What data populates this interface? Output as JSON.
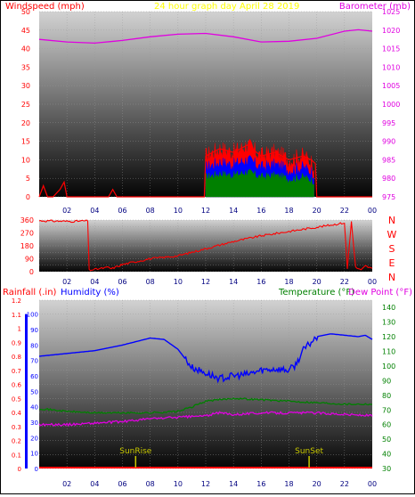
{
  "chart_data": {
    "type": "line",
    "title": "24 hour graph day   April 28 2019",
    "x_ticks": [
      "02",
      "04",
      "06",
      "08",
      "10",
      "12",
      "14",
      "16",
      "18",
      "20",
      "22",
      "00"
    ],
    "colors": {
      "windspeed": "#ff0000",
      "gust_band_blue": "#0000ff",
      "gust_band_green": "#008000",
      "barometer": "#e000e0",
      "direction": "#ff0000",
      "rainfall": "#ff0000",
      "humidity": "#0000ff",
      "temperature": "#008000",
      "dewpoint": "#e000e0",
      "title": "#ffff00",
      "sun_marker": "#c8c800"
    },
    "panels": [
      {
        "id": "wind",
        "left_label": "Windspeed (mph)",
        "right_label": "Barometer (mb)",
        "left_ticks": [
          "0",
          "5",
          "10",
          "15",
          "20",
          "25",
          "30",
          "35",
          "40",
          "45",
          "50"
        ],
        "right_ticks": [
          "975",
          "980",
          "985",
          "990",
          "995",
          "1000",
          "1005",
          "1010",
          "1015",
          "1020",
          "1025"
        ],
        "ylim_left": [
          0,
          50
        ],
        "ylim_right": [
          975,
          1025
        ],
        "series": [
          {
            "name": "Barometer",
            "axis": "right",
            "x": [
              0,
              2,
              4,
              6,
              8,
              10,
              12,
              14,
              16,
              18,
              20,
              22,
              23,
              24
            ],
            "y": [
              1017.5,
              1016.8,
              1016.5,
              1017.2,
              1018.2,
              1018.9,
              1019.1,
              1018.2,
              1016.8,
              1017.0,
              1017.8,
              1019.7,
              1020.1,
              1019.7
            ]
          },
          {
            "name": "Windspeed",
            "axis": "left",
            "x": [
              0,
              0.3,
              0.6,
              1,
              1.5,
              1.8,
              2,
              5,
              5.3,
              5.6,
              6,
              11.9,
              12,
              13,
              14,
              15,
              16,
              17,
              18,
              19,
              19.6,
              19.9,
              20,
              24
            ],
            "y": [
              0,
              3,
              0,
              0,
              2,
              4,
              0,
              0,
              2,
              0,
              0,
              0,
              11,
              13,
              12,
              14,
              11,
              12,
              10,
              11,
              10,
              9,
              0,
              0
            ]
          }
        ]
      },
      {
        "id": "direction",
        "right_labels": [
          "N",
          "W",
          "S",
          "E",
          "N"
        ],
        "left_ticks": [
          "0",
          "45",
          "90",
          "135",
          "180",
          "225",
          "270",
          "315",
          "360"
        ],
        "ylim": [
          0,
          360
        ],
        "series": [
          {
            "name": "Wind direction",
            "x": [
              0,
              2.3,
              3.5,
              3.6,
              5,
              5.2,
              6,
              8,
              10,
              12,
              14,
              16,
              18,
              20,
              22,
              22.2,
              22.5,
              22.8,
              23.2,
              23.5,
              24
            ],
            "y": [
              355,
              350,
              355,
              10,
              30,
              20,
              50,
              90,
              110,
              160,
              210,
              250,
              280,
              310,
              340,
              20,
              350,
              30,
              10,
              40,
              20
            ]
          }
        ]
      },
      {
        "id": "temp",
        "left_label_rain": "Rainfall (.in)",
        "left_label_humidity": "Humidity (%)",
        "right_label_temp": "Temperature (°F)",
        "right_label_dew": "Dew Point (°F)",
        "rain_ticks": [
          "0",
          "0.1",
          "0.2",
          "0.3",
          "0.4",
          "0.5",
          "0.6",
          "0.7",
          "0.8",
          "0.9",
          "1",
          "1.1",
          "1.2"
        ],
        "humidity_ticks": [
          "0",
          "10",
          "20",
          "30",
          "40",
          "50",
          "60",
          "70",
          "80",
          "90",
          "100"
        ],
        "temp_ticks": [
          "30",
          "40",
          "50",
          "60",
          "70",
          "80",
          "90",
          "100",
          "110",
          "120",
          "130",
          "140"
        ],
        "ylim_rain": [
          0,
          1.2
        ],
        "ylim_temp": [
          30,
          145
        ],
        "sunrise_label": "SunRise",
        "sunset_label": "SunSet",
        "sunrise_hour": 6.95,
        "sunset_hour": 19.45,
        "series": [
          {
            "name": "Humidity",
            "axis": "rain",
            "x": [
              0,
              2,
              4,
              6,
              8,
              9,
              10,
              11,
              12,
              13,
              14,
              15,
              16,
              17,
              18,
              18.5,
              19,
              20,
              21,
              22,
              23,
              23.5,
              24
            ],
            "y": [
              0.8,
              0.82,
              0.84,
              0.88,
              0.93,
              0.92,
              0.85,
              0.72,
              0.68,
              0.64,
              0.66,
              0.67,
              0.7,
              0.71,
              0.7,
              0.74,
              0.84,
              0.94,
              0.96,
              0.95,
              0.94,
              0.95,
              0.92
            ]
          },
          {
            "name": "Temperature",
            "axis": "temp",
            "x": [
              0,
              2,
              4,
              6,
              8,
              10,
              11,
              12,
              14,
              16,
              18,
              20,
              22,
              24
            ],
            "y": [
              71,
              69,
              68,
              68,
              68,
              69,
              72,
              76,
              78,
              77,
              76,
              75,
              74,
              74
            ]
          },
          {
            "name": "Dew Point",
            "axis": "temp",
            "x": [
              0,
              2,
              4,
              6,
              8,
              10,
              12,
              13,
              14,
              16,
              18,
              20,
              22,
              24
            ],
            "y": [
              60,
              60,
              61,
              62,
              64,
              65,
              66,
              68,
              67,
              68,
              68,
              68,
              67,
              66
            ]
          },
          {
            "name": "Rainfall",
            "axis": "rain",
            "x": [
              0,
              24
            ],
            "y": [
              0,
              0
            ]
          }
        ]
      }
    ]
  }
}
